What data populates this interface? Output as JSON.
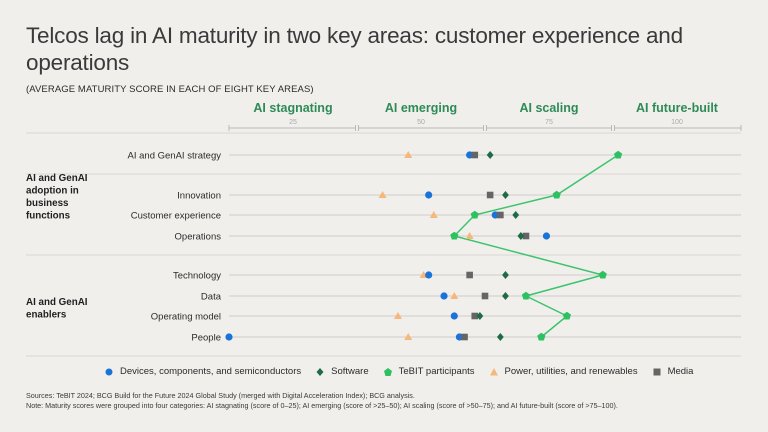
{
  "title": "Telcos lag in AI maturity in two key areas: customer experience and operations",
  "subtitle": "(AVERAGE MATURITY SCORE IN EACH OF EIGHT KEY AREAS)",
  "chart_data": {
    "type": "scatter",
    "title": "Telcos lag in AI maturity in two key areas: customer experience and operations",
    "subtitle": "(AVERAGE MATURITY SCORE IN EACH OF EIGHT KEY AREAS)",
    "xlim": [
      0,
      100
    ],
    "bands": [
      {
        "label": "AI stagnating",
        "tick": "25",
        "range": [
          0,
          25
        ]
      },
      {
        "label": "AI emerging",
        "tick": "50",
        "range": [
          25,
          50
        ]
      },
      {
        "label": "AI scaling",
        "tick": "75",
        "range": [
          50,
          75
        ]
      },
      {
        "label": "AI future-built",
        "tick": "100",
        "range": [
          75,
          100
        ]
      }
    ],
    "groups": [
      {
        "label": "",
        "rows": [
          "AI and GenAI strategy"
        ]
      },
      {
        "label": "AI and GenAI adoption in business functions",
        "rows": [
          "Innovation",
          "Customer experience",
          "Operations"
        ]
      },
      {
        "label": "AI and GenAI enablers",
        "rows": [
          "Technology",
          "Data",
          "Operating model",
          "People"
        ]
      }
    ],
    "categories": [
      "AI and GenAI strategy",
      "Innovation",
      "Customer experience",
      "Operations",
      "Technology",
      "Data",
      "Operating model",
      "People"
    ],
    "series": [
      {
        "name": "Devices, components, and semiconductors",
        "marker": "circle",
        "color": "#1a73d9",
        "values": [
          47,
          39,
          52,
          62,
          39,
          42,
          44,
          45
        ]
      },
      {
        "name": "Software",
        "marker": "diamond",
        "color": "#1e6b45",
        "values": [
          51,
          54,
          56,
          57,
          54,
          54,
          49,
          53
        ]
      },
      {
        "name": "TeBIT participants",
        "marker": "pentagon",
        "color": "#2ec162",
        "connected": true,
        "values": [
          76,
          64,
          48,
          44,
          73,
          58,
          66,
          61
        ]
      },
      {
        "name": "Power, utilities, and renewables",
        "marker": "triangle",
        "color": "#f6b77a",
        "values": [
          35,
          30,
          40,
          47,
          38,
          44,
          33,
          35
        ]
      },
      {
        "name": "Media",
        "marker": "square",
        "color": "#656565",
        "values": [
          48,
          51,
          53,
          58,
          47,
          50,
          48,
          46
        ]
      }
    ],
    "extra_marks": [
      {
        "row": "People",
        "series": "Devices, components, and semiconductors",
        "value": 0
      }
    ],
    "legend_position": "bottom",
    "grid": true
  },
  "footnotes": {
    "sources": "Sources: TeBIT 2024; BCG Build for the Future 2024 Global Study (merged with Digital Acceleration Index); BCG analysis.",
    "note": "Note: Maturity scores were grouped into four categories: AI stagnating (score of 0–25); AI emerging (score of >25–50); AI scaling (score of >50–75); and AI future-built (score of >75–100)."
  }
}
